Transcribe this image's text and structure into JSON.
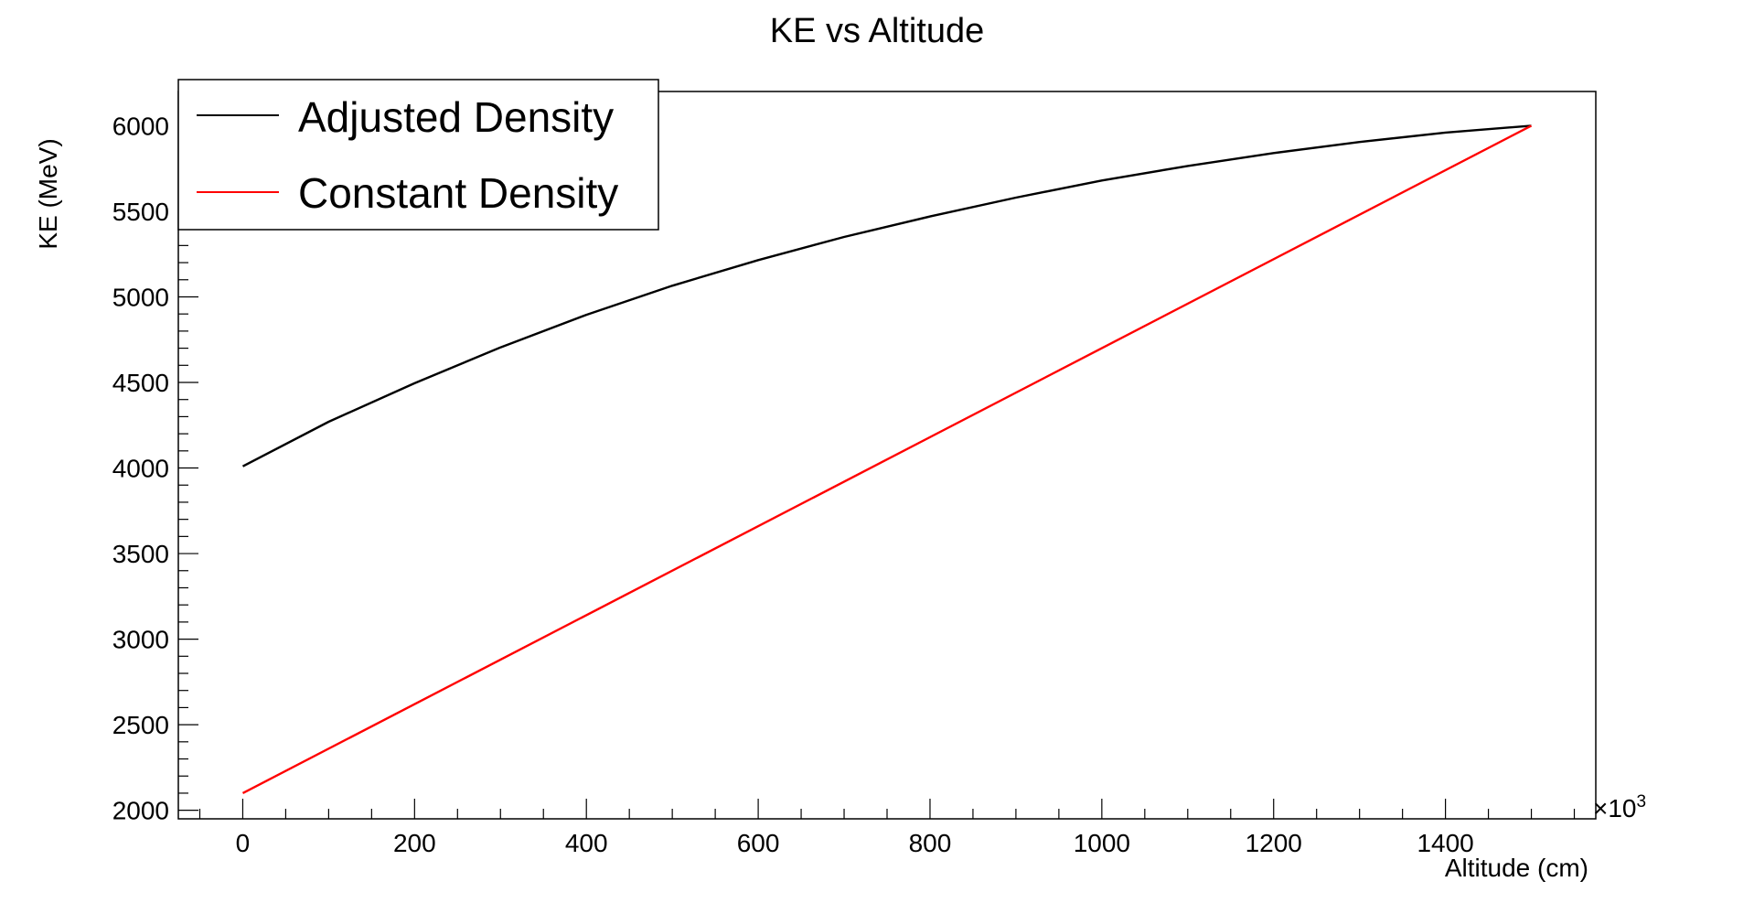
{
  "chart_data": {
    "type": "line",
    "title": "KE vs Altitude",
    "xlabel": "Altitude (cm)",
    "ylabel": "KE (MeV)",
    "x_multiplier": "×10",
    "x_multiplier_exp": "3",
    "xlim": [
      -75,
      1575
    ],
    "ylim": [
      1950,
      6200
    ],
    "x_ticks": [
      0,
      200,
      400,
      600,
      800,
      1000,
      1200,
      1400
    ],
    "y_ticks": [
      2000,
      2500,
      3000,
      3500,
      4000,
      4500,
      5000,
      5500,
      6000
    ],
    "grid": false,
    "legend_position": "top-left",
    "series": [
      {
        "name": "Adjusted Density",
        "color": "#000000",
        "x": [
          0,
          100,
          200,
          300,
          400,
          500,
          600,
          700,
          800,
          900,
          1000,
          1100,
          1200,
          1300,
          1400,
          1500
        ],
        "y": [
          4010,
          4270,
          4495,
          4705,
          4895,
          5065,
          5215,
          5350,
          5470,
          5580,
          5680,
          5765,
          5840,
          5905,
          5960,
          6000
        ]
      },
      {
        "name": "Constant Density",
        "color": "#ff0000",
        "x": [
          0,
          1500
        ],
        "y": [
          2100,
          6000
        ]
      }
    ]
  }
}
